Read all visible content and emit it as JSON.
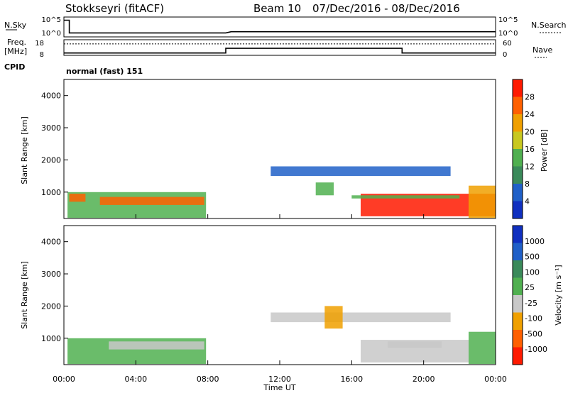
{
  "header": {
    "station": "Stokkseyri (fitACF)",
    "beam": "Beam 10",
    "date_range": "07/Dec/2016 - 08/Dec/2016"
  },
  "noise_panel": {
    "left_label": "N.Sky",
    "left_ticks": [
      "10^5",
      "10^0"
    ],
    "right_label": "N.Search",
    "right_ticks": [
      "10^5",
      "10^0"
    ]
  },
  "freq_panel": {
    "left_label_1": "Freq.",
    "left_label_2": "[MHz]",
    "left_ticks": [
      "18",
      "8"
    ],
    "right_label": "Nave",
    "right_ticks": [
      "60",
      "0"
    ]
  },
  "cpid": {
    "label": "CPID",
    "mode": "normal (fast) 151"
  },
  "axes": {
    "ylabel": "Slant Range [km]",
    "xlabel": "Time UT",
    "yticks": [
      "1000",
      "2000",
      "3000",
      "4000"
    ],
    "xticks": [
      "00:00",
      "04:00",
      "08:00",
      "12:00",
      "16:00",
      "20:00",
      "00:00"
    ]
  },
  "chart_data": [
    {
      "type": "heatmap",
      "name": "power",
      "colorbar_label": "Power [dB]",
      "colorbar_ticks": [
        "4",
        "8",
        "12",
        "16",
        "20",
        "24",
        "28"
      ],
      "vrange": [
        0,
        30
      ],
      "x_unit": "hours UT",
      "xlim": [
        0,
        24
      ],
      "ylim": [
        180,
        4500
      ],
      "regions": [
        {
          "t0": 0.2,
          "t1": 7.9,
          "r0": 200,
          "r1": 1000,
          "v": 12
        },
        {
          "t0": 2.0,
          "t1": 7.8,
          "r0": 600,
          "r1": 850,
          "v": 26
        },
        {
          "t0": 0.3,
          "t1": 1.2,
          "r0": 700,
          "r1": 950,
          "v": 24
        },
        {
          "t0": 11.5,
          "t1": 21.5,
          "r0": 1500,
          "r1": 1800,
          "v": 7
        },
        {
          "t0": 14.0,
          "t1": 15.0,
          "r0": 900,
          "r1": 1300,
          "v": 14
        },
        {
          "t0": 16.5,
          "t1": 24.0,
          "r0": 250,
          "r1": 950,
          "v": 27
        },
        {
          "t0": 16.0,
          "t1": 22.0,
          "r0": 800,
          "r1": 900,
          "v": 12
        },
        {
          "t0": 22.5,
          "t1": 24.0,
          "r0": 200,
          "r1": 1200,
          "v": 22
        }
      ]
    },
    {
      "type": "heatmap",
      "name": "velocity",
      "colorbar_label": "Velocity [m s⁻¹]",
      "colorbar_ticks": [
        "1000",
        "500",
        "100",
        "25",
        "-25",
        "-100",
        "-500",
        "-1000"
      ],
      "vrange": [
        -1000,
        1000
      ],
      "x_unit": "hours UT",
      "xlim": [
        0,
        24
      ],
      "ylim": [
        180,
        4500
      ],
      "regions": [
        {
          "t0": 0.2,
          "t1": 7.9,
          "r0": 200,
          "r1": 1000,
          "v": 150
        },
        {
          "t0": 2.5,
          "t1": 7.8,
          "r0": 650,
          "r1": 900,
          "v": 0
        },
        {
          "t0": 11.5,
          "t1": 21.5,
          "r0": 1500,
          "r1": 1800,
          "v": 0
        },
        {
          "t0": 14.5,
          "t1": 15.5,
          "r0": 1300,
          "r1": 2000,
          "v": -300
        },
        {
          "t0": 16.5,
          "t1": 22.5,
          "r0": 250,
          "r1": 950,
          "v": -120
        },
        {
          "t0": 18.0,
          "t1": 21.0,
          "r0": 700,
          "r1": 900,
          "v": 0
        },
        {
          "t0": 22.5,
          "t1": 24.0,
          "r0": 200,
          "r1": 1200,
          "v": 120
        }
      ]
    }
  ],
  "noise_line": {
    "x": [
      0,
      0.3,
      0.3,
      9,
      9.3,
      24
    ],
    "y": [
      4.2,
      4.2,
      1,
      1,
      1.3,
      1.3
    ]
  },
  "freq_line": {
    "x": [
      0,
      9.0,
      9.0,
      18.8,
      18.8,
      24
    ],
    "y": [
      9.5,
      9.5,
      12.5,
      12.5,
      9.5,
      9.5
    ]
  },
  "nave_line": {
    "x": [
      0,
      24
    ],
    "y": [
      44,
      44
    ]
  },
  "colors": {
    "power_scale": [
      "#1030c0",
      "#2060c8",
      "#3a8a5a",
      "#50b050",
      "#c8c820",
      "#f0a000",
      "#ff6000",
      "#ff1a00"
    ],
    "velocity_scale": [
      "#1030c0",
      "#2060c8",
      "#3a8a5a",
      "#50b050",
      "#c8c8c8",
      "#f0a000",
      "#ff6000",
      "#ff1a00"
    ]
  }
}
